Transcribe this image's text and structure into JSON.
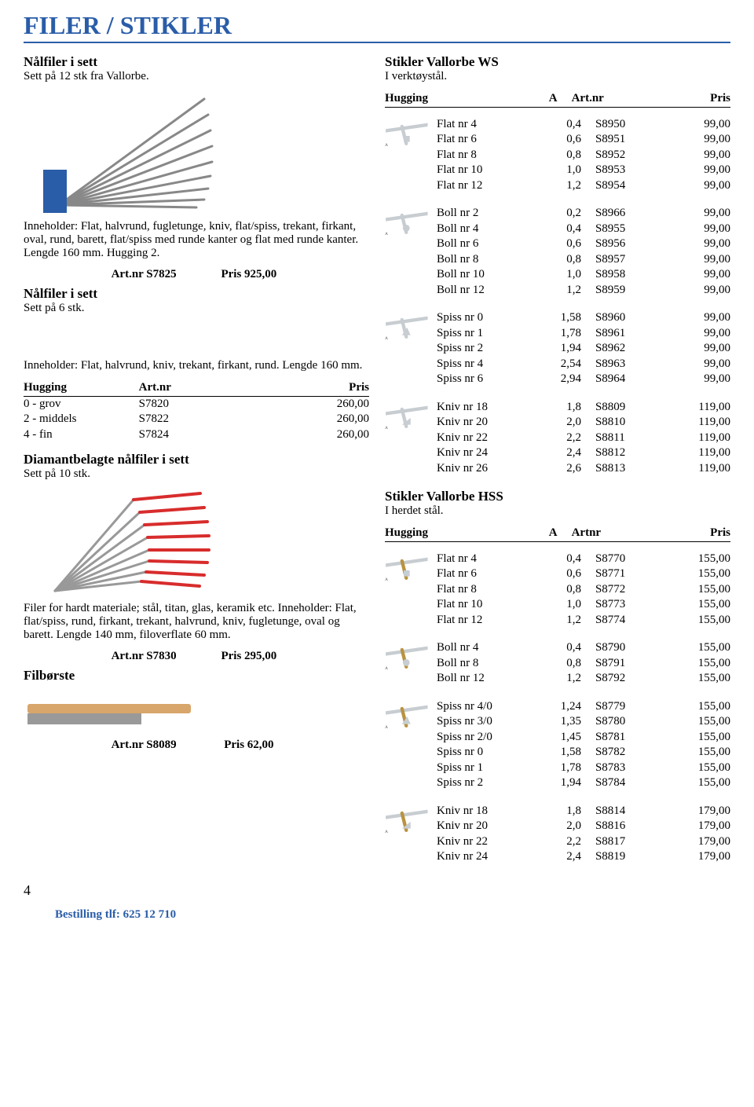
{
  "page_number": 4,
  "title": "FILER / STIKLER",
  "footer": "Bestilling tlf: 625 12 710",
  "colors": {
    "accent": "#2a5da8",
    "text": "#000000",
    "bg": "#ffffff",
    "steel": "#c7cdd1",
    "red": "#d82c2c",
    "wood": "#d8a56a",
    "brass": "#b99340"
  },
  "left": {
    "sec1": {
      "h": "Nålfiler i sett",
      "d": "Sett på 12 stk fra Vallorbe."
    },
    "sec2": {
      "d": "Inneholder: Flat, halvrund, fugletunge, kniv, flat/spiss, trekant, firkant, oval, rund, barett, flat/spiss med runde kanter og flat med runde kanter. Lengde 160 mm. Hugging 2.",
      "price": {
        "art": "Art.nr S7825",
        "pris": "Pris 925,00"
      }
    },
    "sec3": {
      "h": "Nålfiler i sett",
      "d": "Sett på 6 stk."
    },
    "sec4": {
      "d": "Inneholder: Flat, halvrund, kniv, trekant, firkant, rund. Lengde 160 mm.",
      "hd": [
        "Hugging",
        "Art.nr",
        "Pris"
      ],
      "rows": [
        [
          "0 - grov",
          "S7820",
          "260,00"
        ],
        [
          "2 - middels",
          "S7822",
          "260,00"
        ],
        [
          "4 - fin",
          "S7824",
          "260,00"
        ]
      ]
    },
    "sec5": {
      "h": "Diamantbelagte nålfiler i sett",
      "d": "Sett på 10 stk."
    },
    "sec6": {
      "d": "Filer for hardt materiale; stål, titan, glas, keramik etc. Inneholder: Flat, flat/spiss, rund, firkant, trekant, halvrund, kniv, fugletunge, oval og barett. Lengde 140 mm, filoverflate 60 mm.",
      "price": {
        "art": "Art.nr S7830",
        "pris": "Pris 295,00"
      }
    },
    "sec7": {
      "h": "Filbørste",
      "price": {
        "art": "Art.nr S8089",
        "pris": "Pris  62,00"
      }
    }
  },
  "right": {
    "sec1": {
      "h": "Stikler Vallorbe WS",
      "d": "I verktøystål.",
      "hd": [
        "Hugging",
        "A",
        "Art.nr",
        "Pris"
      ]
    },
    "grp1": [
      [
        "Flat nr 4",
        "0,4",
        "S8950",
        "99,00"
      ],
      [
        "Flat nr 6",
        "0,6",
        "S8951",
        "99,00"
      ],
      [
        "Flat nr 8",
        "0,8",
        "S8952",
        "99,00"
      ],
      [
        "Flat nr 10",
        "1,0",
        "S8953",
        "99,00"
      ],
      [
        "Flat nr 12",
        "1,2",
        "S8954",
        "99,00"
      ]
    ],
    "grp2": [
      [
        "Boll nr 2",
        "0,2",
        "S8966",
        "99,00"
      ],
      [
        "Boll nr 4",
        "0,4",
        "S8955",
        "99,00"
      ],
      [
        "Boll nr 6",
        "0,6",
        "S8956",
        "99,00"
      ],
      [
        "Boll nr 8",
        "0,8",
        "S8957",
        "99,00"
      ],
      [
        "Boll nr 10",
        "1,0",
        "S8958",
        "99,00"
      ],
      [
        "Boll nr 12",
        "1,2",
        "S8959",
        "99,00"
      ]
    ],
    "grp3": [
      [
        "Spiss nr 0",
        "1,58",
        "S8960",
        "99,00"
      ],
      [
        "Spiss nr 1",
        "1,78",
        "S8961",
        "99,00"
      ],
      [
        "Spiss nr 2",
        "1,94",
        "S8962",
        "99,00"
      ],
      [
        "Spiss nr 4",
        "2,54",
        "S8963",
        "99,00"
      ],
      [
        "Spiss nr 6",
        "2,94",
        "S8964",
        "99,00"
      ]
    ],
    "grp4": [
      [
        "Kniv nr 18",
        "1,8",
        "S8809",
        "119,00"
      ],
      [
        "Kniv nr 20",
        "2,0",
        "S8810",
        "119,00"
      ],
      [
        "Kniv nr 22",
        "2,2",
        "S8811",
        "119,00"
      ],
      [
        "Kniv nr 24",
        "2,4",
        "S8812",
        "119,00"
      ],
      [
        "Kniv nr 26",
        "2,6",
        "S8813",
        "119,00"
      ]
    ],
    "sec2": {
      "h": "Stikler Vallorbe HSS",
      "d": "I herdet stål.",
      "hd": [
        "Hugging",
        "A",
        "Artnr",
        "Pris"
      ]
    },
    "grp5": [
      [
        "Flat nr 4",
        "0,4",
        "S8770",
        "155,00"
      ],
      [
        "Flat nr 6",
        "0,6",
        "S8771",
        "155,00"
      ],
      [
        "Flat nr 8",
        "0,8",
        "S8772",
        "155,00"
      ],
      [
        "Flat nr 10",
        "1,0",
        "S8773",
        "155,00"
      ],
      [
        "Flat nr 12",
        "1,2",
        "S8774",
        "155,00"
      ]
    ],
    "grp6": [
      [
        "Boll nr 4",
        "0,4",
        "S8790",
        "155,00"
      ],
      [
        "Boll nr 8",
        "0,8",
        "S8791",
        "155,00"
      ],
      [
        "Boll nr 12",
        "1,2",
        "S8792",
        "155,00"
      ]
    ],
    "grp7": [
      [
        "Spiss nr 4/0",
        "1,24",
        "S8779",
        "155,00"
      ],
      [
        "Spiss nr 3/0",
        "1,35",
        "S8780",
        "155,00"
      ],
      [
        "Spiss nr 2/0",
        "1,45",
        "S8781",
        "155,00"
      ],
      [
        "Spiss nr 0",
        "1,58",
        "S8782",
        "155,00"
      ],
      [
        "Spiss nr 1",
        "1,78",
        "S8783",
        "155,00"
      ],
      [
        "Spiss nr 2",
        "1,94",
        "S8784",
        "155,00"
      ]
    ],
    "grp8": [
      [
        "Kniv nr 18",
        "1,8",
        "S8814",
        "179,00"
      ],
      [
        "Kniv nr 20",
        "2,0",
        "S8816",
        "179,00"
      ],
      [
        "Kniv nr 22",
        "2,2",
        "S8817",
        "179,00"
      ],
      [
        "Kniv nr 24",
        "2,4",
        "S8819",
        "179,00"
      ]
    ]
  },
  "tools": [
    "flat",
    "round",
    "spiss",
    "kniv",
    "flat",
    "round",
    "spiss",
    "kniv"
  ]
}
